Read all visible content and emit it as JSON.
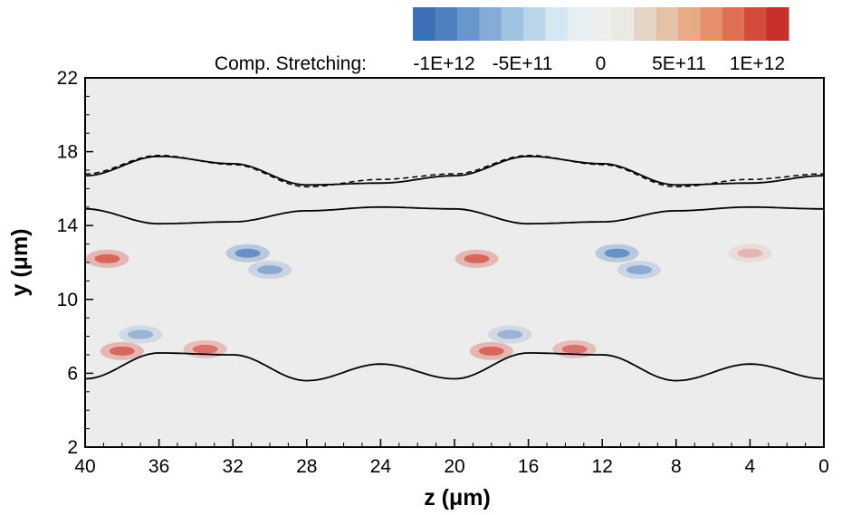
{
  "chart_data": {
    "type": "heatmap",
    "xlabel": "z (μm)",
    "ylabel": "y (μm)",
    "xlim": [
      40,
      0
    ],
    "ylim": [
      2,
      22
    ],
    "x_reversed": true,
    "xticks": [
      40,
      36,
      32,
      28,
      24,
      20,
      16,
      12,
      8,
      4,
      0
    ],
    "xtick_labels": [
      "40",
      "36",
      "32",
      "28",
      "24",
      "20",
      "16",
      "12",
      "8",
      "4",
      "0"
    ],
    "yticks": [
      2,
      6,
      10,
      14,
      18,
      22
    ],
    "ytick_labels": [
      "2",
      "6",
      "10",
      "14",
      "18",
      "22"
    ],
    "grid": false,
    "colorbar": {
      "title": "Comp. Stretching:",
      "placement": "top-right",
      "range": [
        -1200000000000.0,
        1200000000000.0
      ],
      "tick_values": [
        -1000000000000.0,
        -500000000000.0,
        0,
        500000000000.0,
        1000000000000.0
      ],
      "tick_labels": [
        "-1E+12",
        "-5E+11",
        "0",
        "5E+11",
        "1E+12"
      ],
      "colors": [
        "#3b6fb6",
        "#4f80c0",
        "#6a97cb",
        "#85acd6",
        "#9fc3e0",
        "#b9d6ea",
        "#d4e8f2",
        "#e6eff1",
        "#eeeeee",
        "#ece8e3",
        "#e3d6c9",
        "#e4c2a6",
        "#e8ab87",
        "#e5906c",
        "#de6f53",
        "#d34b3b",
        "#c8302b"
      ]
    },
    "interfaces": {
      "solid": [
        {
          "z": [
            40,
            36,
            32,
            28,
            24,
            20,
            16,
            12,
            8,
            4,
            0
          ],
          "y": [
            16.7,
            17.75,
            17.35,
            16.2,
            16.3,
            16.7,
            17.75,
            17.35,
            16.2,
            16.3,
            16.7
          ]
        },
        {
          "z": [
            40,
            36,
            32,
            28,
            24,
            20,
            16,
            12,
            8,
            4,
            0
          ],
          "y": [
            14.9,
            14.1,
            14.2,
            14.8,
            15.0,
            14.9,
            14.1,
            14.2,
            14.8,
            15.0,
            14.9
          ]
        },
        {
          "z": [
            40,
            36,
            32,
            28,
            24,
            20,
            16,
            12,
            8,
            4,
            0
          ],
          "y": [
            5.7,
            7.1,
            7.0,
            5.6,
            6.5,
            5.7,
            7.1,
            7.0,
            5.6,
            6.5,
            5.7
          ]
        }
      ],
      "dashed": [
        {
          "z": [
            40,
            36,
            32,
            28,
            24,
            20,
            16,
            12,
            8,
            4,
            0
          ],
          "y": [
            16.8,
            17.8,
            17.3,
            16.1,
            16.5,
            16.8,
            17.8,
            17.3,
            16.1,
            16.5,
            16.8
          ]
        }
      ]
    },
    "features": [
      {
        "sign": "positive",
        "z": 38.8,
        "y": 12.2,
        "strength": 0.9
      },
      {
        "sign": "positive",
        "z": 38.0,
        "y": 7.2,
        "strength": 0.9
      },
      {
        "sign": "positive",
        "z": 33.5,
        "y": 7.3,
        "strength": 0.8
      },
      {
        "sign": "positive",
        "z": 18.8,
        "y": 12.2,
        "strength": 0.9
      },
      {
        "sign": "positive",
        "z": 18.0,
        "y": 7.2,
        "strength": 0.9
      },
      {
        "sign": "positive",
        "z": 13.5,
        "y": 7.3,
        "strength": 0.8
      },
      {
        "sign": "positive",
        "z": 4.0,
        "y": 12.5,
        "strength": 0.3
      },
      {
        "sign": "negative",
        "z": 31.2,
        "y": 12.5,
        "strength": 0.9
      },
      {
        "sign": "negative",
        "z": 30.0,
        "y": 11.6,
        "strength": 0.6
      },
      {
        "sign": "negative",
        "z": 11.2,
        "y": 12.5,
        "strength": 0.9
      },
      {
        "sign": "negative",
        "z": 10.0,
        "y": 11.6,
        "strength": 0.6
      },
      {
        "sign": "negative",
        "z": 37.0,
        "y": 8.1,
        "strength": 0.5
      },
      {
        "sign": "negative",
        "z": 17.0,
        "y": 8.1,
        "strength": 0.5
      }
    ]
  }
}
